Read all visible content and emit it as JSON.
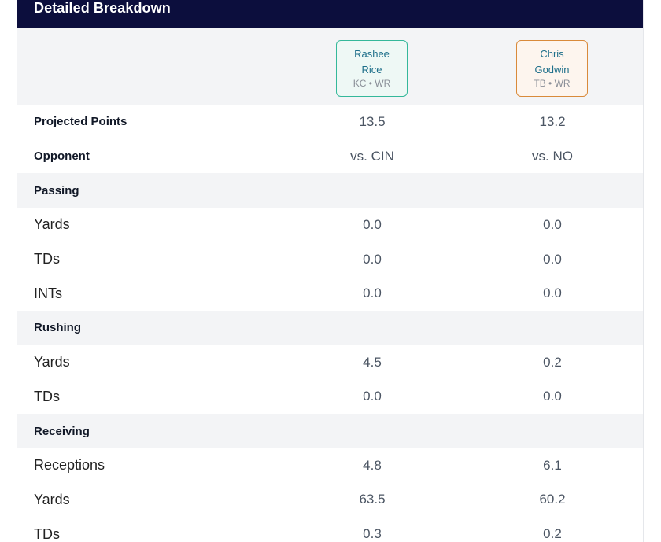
{
  "header": {
    "title": "Detailed Breakdown"
  },
  "players": [
    {
      "first": "Rashee",
      "last": "Rice",
      "meta": "KC • WR"
    },
    {
      "first": "Chris",
      "last": "Godwin",
      "meta": "TB • WR"
    }
  ],
  "rows": {
    "projected": {
      "label": "Projected Points",
      "v1": "13.5",
      "v2": "13.2"
    },
    "opponent": {
      "label": "Opponent",
      "v1": "vs. CIN",
      "v2": "vs. NO"
    },
    "passing": {
      "label": "Passing"
    },
    "pass_yards": {
      "label": "Yards",
      "v1": "0.0",
      "v2": "0.0"
    },
    "pass_tds": {
      "label": "TDs",
      "v1": "0.0",
      "v2": "0.0"
    },
    "pass_ints": {
      "label": "INTs",
      "v1": "0.0",
      "v2": "0.0"
    },
    "rushing": {
      "label": "Rushing"
    },
    "rush_yards": {
      "label": "Yards",
      "v1": "4.5",
      "v2": "0.2"
    },
    "rush_tds": {
      "label": "TDs",
      "v1": "0.0",
      "v2": "0.0"
    },
    "receiving": {
      "label": "Receiving"
    },
    "receptions": {
      "label": "Receptions",
      "v1": "4.8",
      "v2": "6.1"
    },
    "rec_yards": {
      "label": "Yards",
      "v1": "63.5",
      "v2": "60.2"
    },
    "rec_tds": {
      "label": "TDs",
      "v1": "0.3",
      "v2": "0.2"
    }
  },
  "colors": {
    "header_bg": "#0c0e3d",
    "player1_border": "#34b89a",
    "player2_border": "#d98a3a",
    "section_bg": "#f3f4f6"
  }
}
